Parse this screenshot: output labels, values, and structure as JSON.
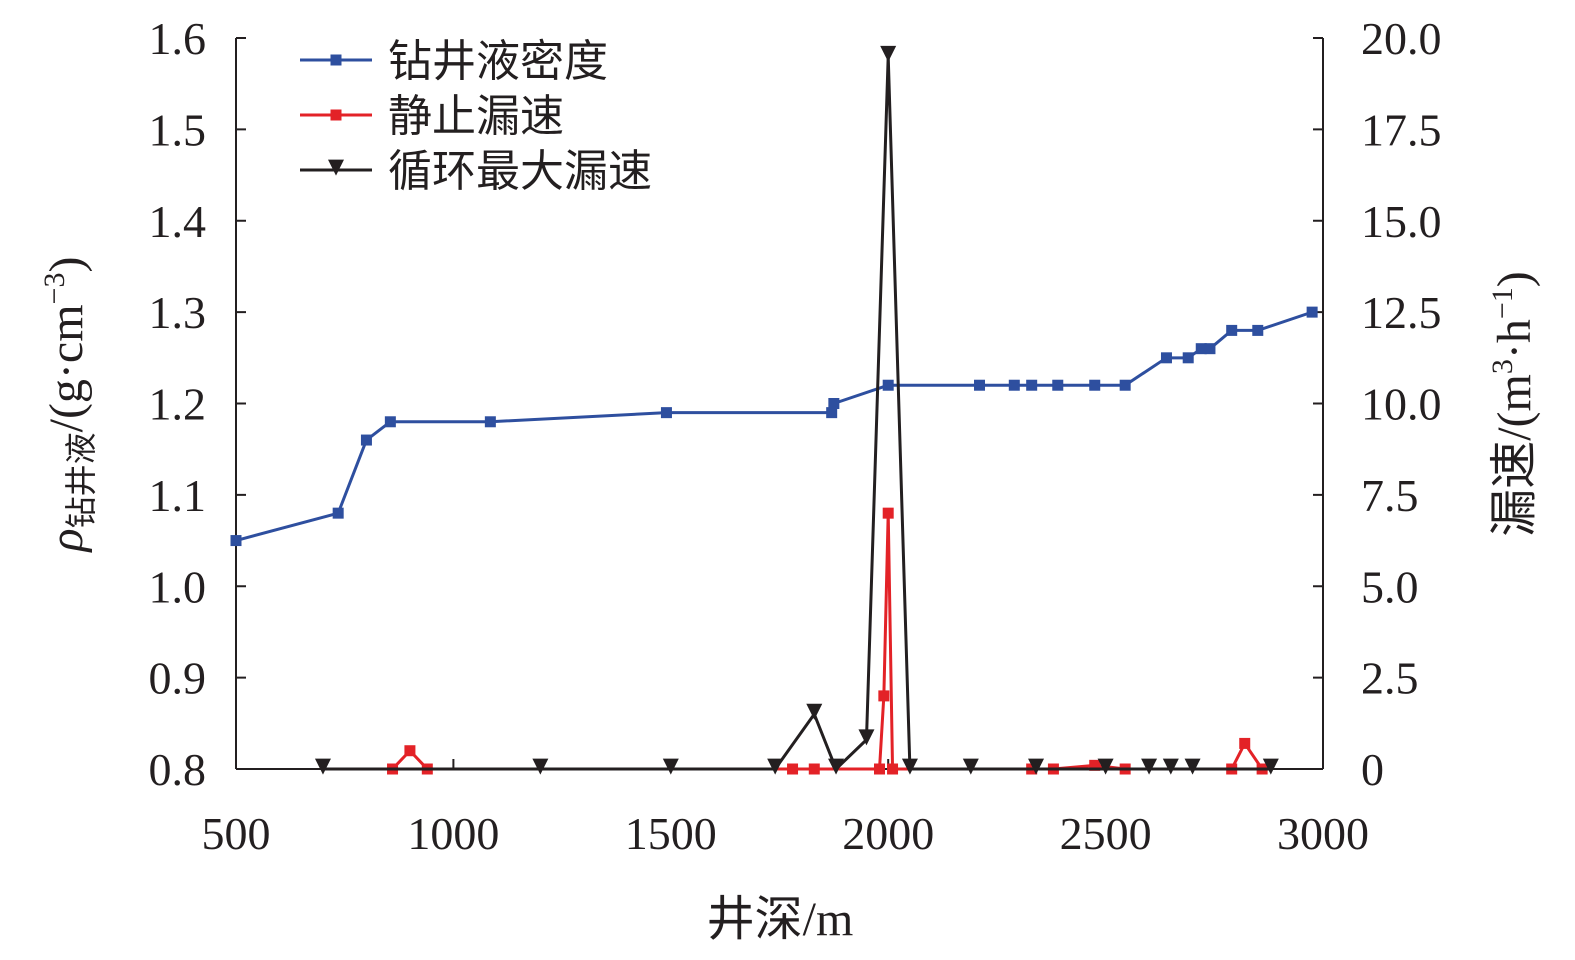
{
  "chart_data": {
    "type": "line",
    "xlabel": "井深/m",
    "ylabel_left_symbol": "ρ",
    "ylabel_left_subscript": "钻井液",
    "ylabel_left_unit_open": "/(g·cm",
    "ylabel_left_unit_exp": "−3",
    "ylabel_left_unit_close": ")",
    "ylabel_right_main": "漏速/(m",
    "ylabel_right_exp1": "3",
    "ylabel_right_mid": "·h",
    "ylabel_right_exp2": "−1",
    "ylabel_right_close": ")",
    "xlim": [
      500,
      3000
    ],
    "ylim_left": [
      0.8,
      1.6
    ],
    "ylim_right": [
      0,
      20
    ],
    "x_ticks": [
      "500",
      "1000",
      "1500",
      "2000",
      "2500",
      "3000"
    ],
    "y_left_ticks": [
      "0.8",
      "0.9",
      "1.0",
      "1.1",
      "1.2",
      "1.3",
      "1.4",
      "1.5",
      "1.6"
    ],
    "y_right_ticks": [
      "0",
      "2.5",
      "5.0",
      "7.5",
      "10.0",
      "12.5",
      "15.0",
      "17.5",
      "20.0"
    ],
    "grid": false,
    "legend_position": "top-left",
    "series": [
      {
        "name": "钻井液密度",
        "axis": "left",
        "color": "#2e4f9f",
        "marker": "square",
        "points": [
          [
            500,
            1.05
          ],
          [
            735,
            1.08
          ],
          [
            800,
            1.16
          ],
          [
            855,
            1.18
          ],
          [
            1085,
            1.18
          ],
          [
            1490,
            1.19
          ],
          [
            1870,
            1.19
          ],
          [
            1875,
            1.2
          ],
          [
            2000,
            1.22
          ],
          [
            2210,
            1.22
          ],
          [
            2290,
            1.22
          ],
          [
            2330,
            1.22
          ],
          [
            2390,
            1.22
          ],
          [
            2475,
            1.22
          ],
          [
            2545,
            1.22
          ],
          [
            2640,
            1.25
          ],
          [
            2690,
            1.25
          ],
          [
            2720,
            1.26
          ],
          [
            2740,
            1.26
          ],
          [
            2790,
            1.28
          ],
          [
            2850,
            1.28
          ],
          [
            2975,
            1.3
          ]
        ]
      },
      {
        "name": "静止漏速",
        "axis": "right",
        "color": "#e32227",
        "marker": "square",
        "points": [
          [
            860,
            0
          ],
          [
            900,
            0.5
          ],
          [
            940,
            0
          ],
          [
            1780,
            0
          ],
          [
            1830,
            0
          ],
          [
            1980,
            0
          ],
          [
            1990,
            2
          ],
          [
            2000,
            7
          ],
          [
            2010,
            0
          ],
          [
            2330,
            0
          ],
          [
            2380,
            0
          ],
          [
            2475,
            0.1
          ],
          [
            2545,
            0
          ],
          [
            2790,
            0
          ],
          [
            2820,
            0.7
          ],
          [
            2860,
            0
          ]
        ]
      },
      {
        "name": "循环最大漏速",
        "axis": "right",
        "color": "#231f20",
        "marker": "triangle-down",
        "points": [
          [
            700,
            0
          ],
          [
            1200,
            0
          ],
          [
            1500,
            0
          ],
          [
            1740,
            0
          ],
          [
            1830,
            1.5
          ],
          [
            1880,
            0
          ],
          [
            1950,
            0.8
          ],
          [
            2000,
            19.5
          ],
          [
            2050,
            0
          ],
          [
            2190,
            0
          ],
          [
            2340,
            0
          ],
          [
            2500,
            0
          ],
          [
            2600,
            0
          ],
          [
            2650,
            0
          ],
          [
            2700,
            0
          ],
          [
            2880,
            0
          ]
        ]
      }
    ]
  }
}
